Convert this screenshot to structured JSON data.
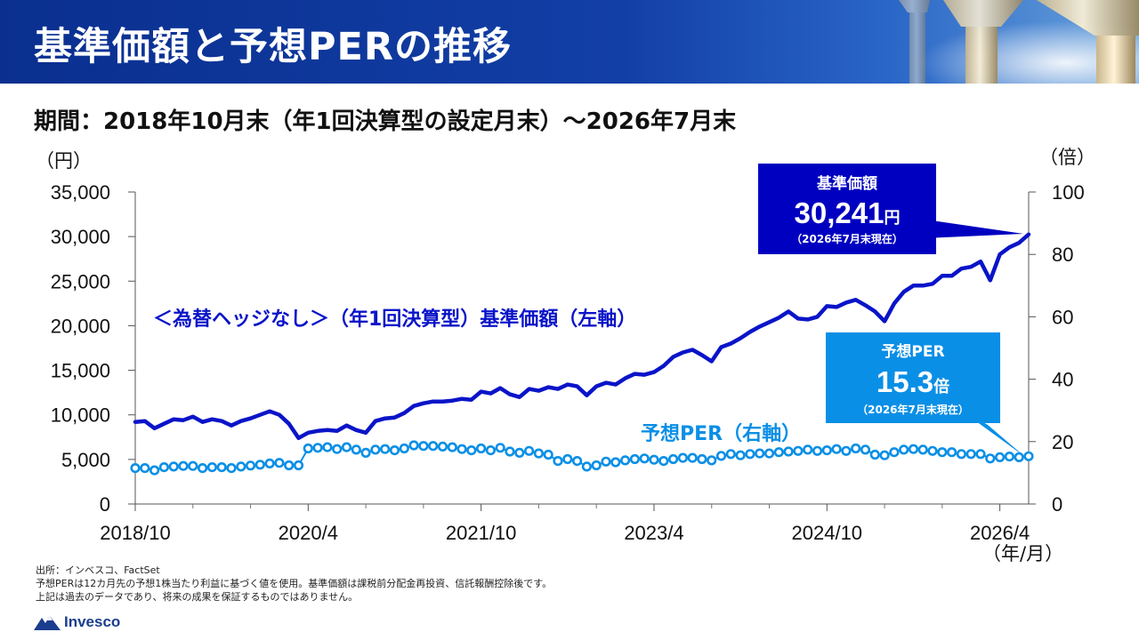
{
  "header": {
    "title": "基準価額と予想PERの推移"
  },
  "period": "期間：2018年10月末（年1回決算型の設定月末）～2026年7月末",
  "chart_data": {
    "type": "line",
    "left_axis": {
      "unit": "（円）",
      "min": 0,
      "max": 35000,
      "ticks": [
        "0",
        "5,000",
        "10,000",
        "15,000",
        "20,000",
        "25,000",
        "30,000",
        "35,000"
      ]
    },
    "right_axis": {
      "unit": "（倍）",
      "min": 0,
      "max": 100,
      "ticks": [
        "0",
        "20",
        "40",
        "60",
        "80",
        "100"
      ]
    },
    "x_axis": {
      "unit": "（年/月）",
      "tick_labels": [
        "2018/10",
        "2020/4",
        "2021/10",
        "2023/4",
        "2024/10",
        "2026/4"
      ]
    },
    "colors": {
      "nav": "#0a14c8",
      "per": "#0a8fe6"
    },
    "series": [
      {
        "name": "＜為替ヘッジなし＞（年1回決算型）基準価額（左軸）",
        "axis": "left",
        "values": [
          9200,
          9300,
          8500,
          9000,
          9500,
          9400,
          9800,
          9200,
          9500,
          9300,
          8800,
          9300,
          9600,
          10000,
          10400,
          10000,
          9000,
          7400,
          8000,
          8200,
          8300,
          8200,
          8800,
          8300,
          8000,
          9300,
          9600,
          9700,
          10200,
          11000,
          11300,
          11500,
          11500,
          11600,
          11800,
          11700,
          12600,
          12400,
          13000,
          12300,
          12000,
          12900,
          12700,
          13100,
          12900,
          13400,
          13200,
          12200,
          13200,
          13600,
          13400,
          14100,
          14600,
          14500,
          14800,
          15500,
          16500,
          17000,
          17300,
          16700,
          16000,
          17600,
          18000,
          18600,
          19300,
          19900,
          20400,
          20900,
          21600,
          20800,
          20700,
          21000,
          22200,
          22100,
          22600,
          22900,
          22300,
          21600,
          20500,
          22500,
          23800,
          24500,
          24500,
          24700,
          25600,
          25600,
          26400,
          26600,
          27200,
          25100,
          28000,
          28800,
          29300,
          30241
        ]
      },
      {
        "name": "予想PER（右軸）",
        "axis": "right",
        "values": [
          11.5,
          11.5,
          10.8,
          11.8,
          12.0,
          12.2,
          12.2,
          11.5,
          11.8,
          11.8,
          11.5,
          12.0,
          12.3,
          12.6,
          13.0,
          13.2,
          12.4,
          12.4,
          17.8,
          18.0,
          18.2,
          17.6,
          18.2,
          17.4,
          16.4,
          17.4,
          17.6,
          17.2,
          17.8,
          18.8,
          18.6,
          18.6,
          18.4,
          18.2,
          17.6,
          17.2,
          17.8,
          17.2,
          18.0,
          16.8,
          16.4,
          17.0,
          16.2,
          15.8,
          13.8,
          14.4,
          13.8,
          12.0,
          12.4,
          13.6,
          13.4,
          14.0,
          14.4,
          14.6,
          14.2,
          13.8,
          14.4,
          14.8,
          14.8,
          14.4,
          14.0,
          15.4,
          16.0,
          15.6,
          16.0,
          16.2,
          16.2,
          16.6,
          16.8,
          17.0,
          17.4,
          17.0,
          17.2,
          17.6,
          17.0,
          17.8,
          17.4,
          15.8,
          15.6,
          16.6,
          17.4,
          17.6,
          17.4,
          17.0,
          16.6,
          16.6,
          16.0,
          16.0,
          16.0,
          14.6,
          15.0,
          15.2,
          15.0,
          15.3
        ]
      }
    ],
    "callouts": [
      {
        "title": "基準価額",
        "value": "30,241",
        "unit": "円",
        "note": "（2026年7月末現在）"
      },
      {
        "title": "予想PER",
        "value": "15.3",
        "unit": "倍",
        "note": "（2026年7月末現在）"
      }
    ]
  },
  "footnotes": [
    "出所：インベスコ、FactSet",
    "予想PERは12カ月先の予想1株当たり利益に基づく値を使用。基準価額は課税前分配金再投資、信託報酬控除後です。",
    "上記は過去のデータであり、将来の成果を保証するものではありません。"
  ],
  "logo": {
    "text": "Invesco"
  }
}
